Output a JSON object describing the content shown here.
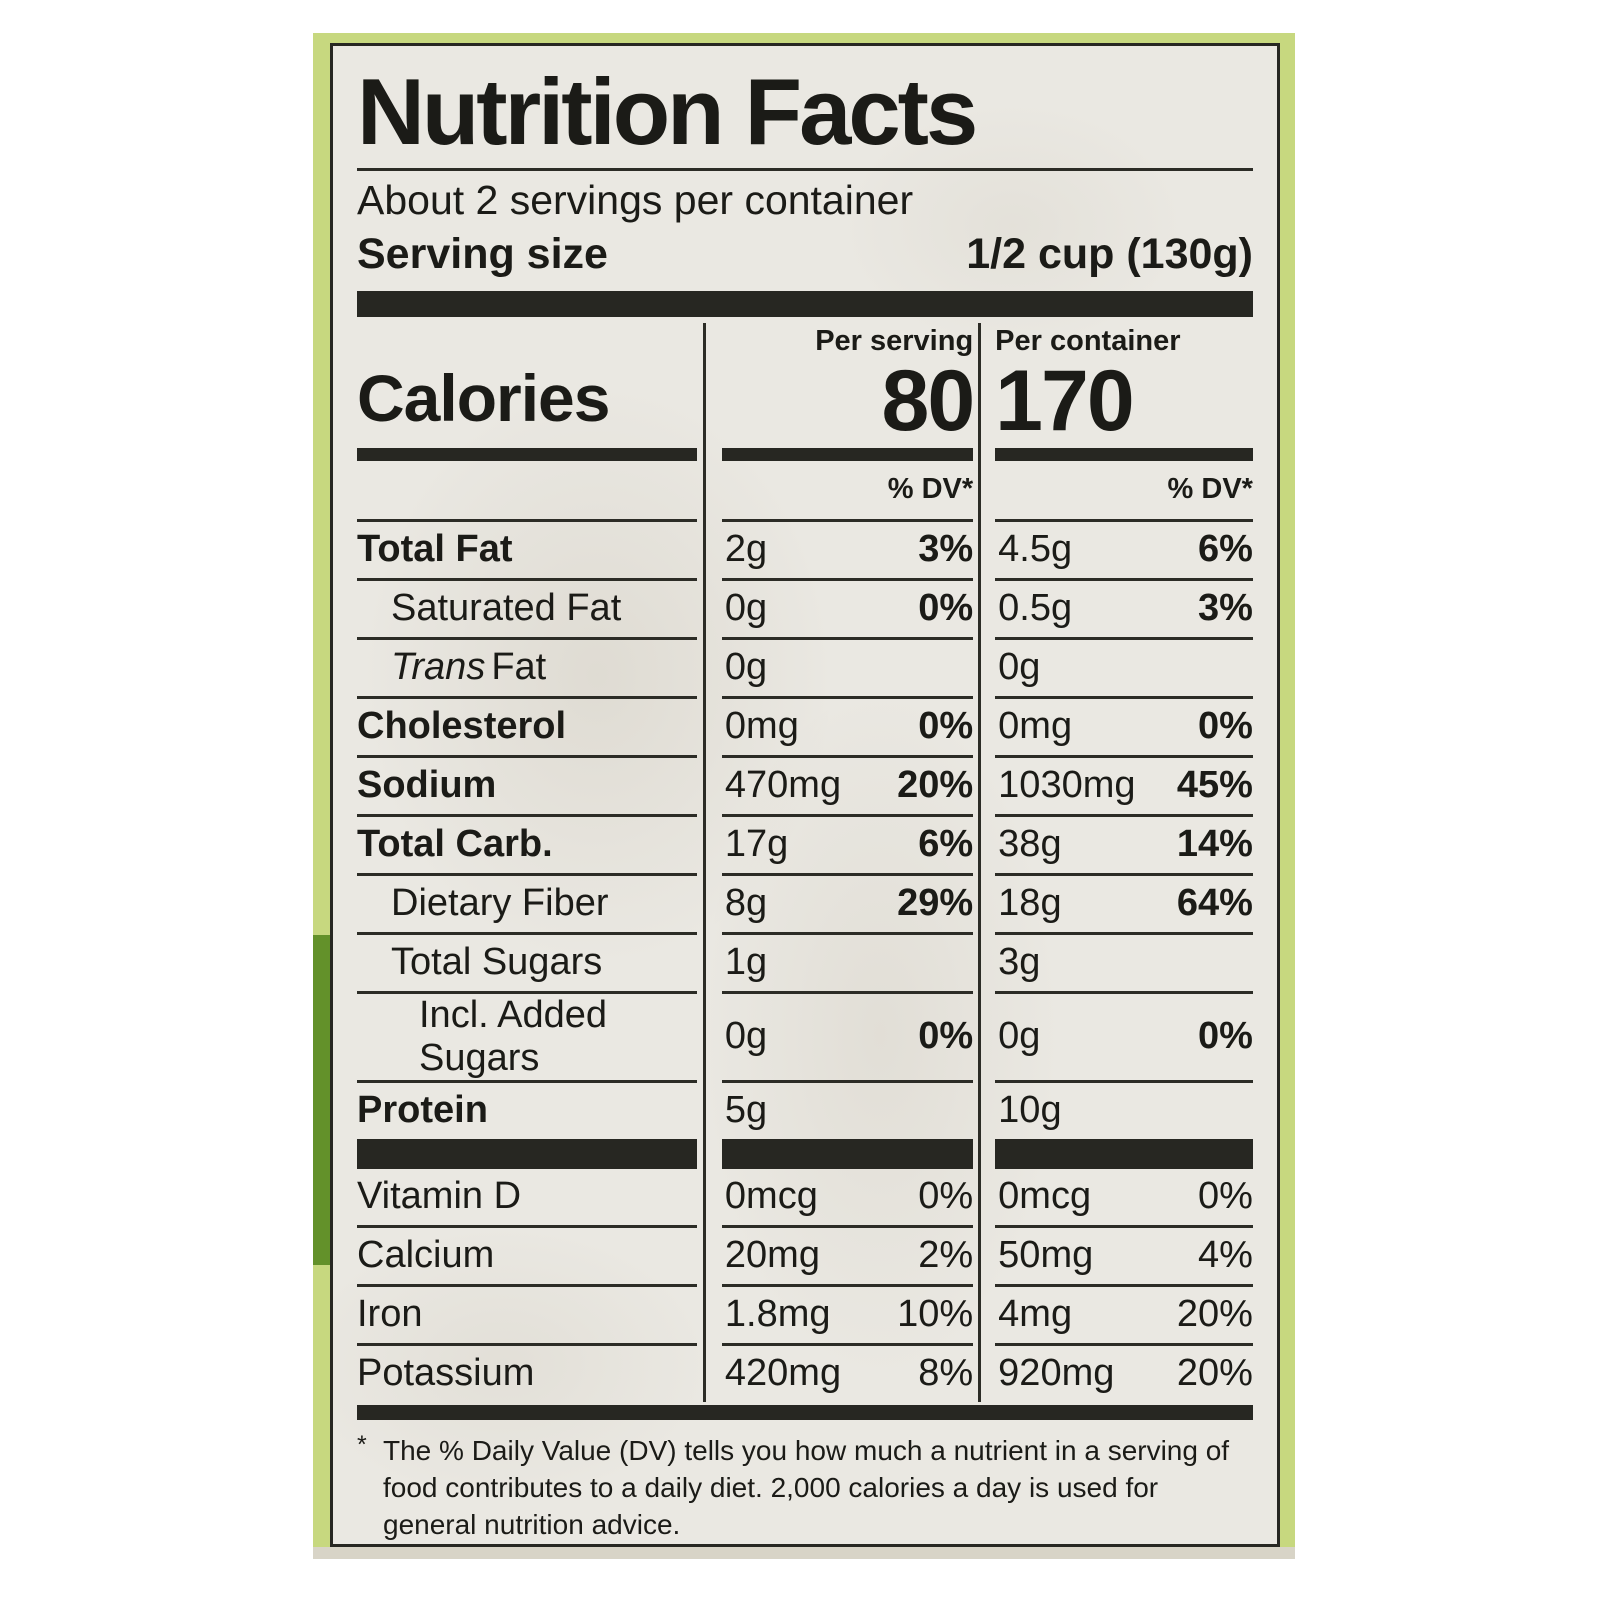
{
  "label": {
    "title": "Nutrition Facts",
    "servings_per_container": "About 2 servings per container",
    "serving_size_label": "Serving size",
    "serving_size_value": "1/2 cup (130g)",
    "calories": {
      "word": "Calories",
      "per_serving_header": "Per serving",
      "per_serving_value": "80",
      "per_container_header": "Per container",
      "per_container_value": "170"
    },
    "dv_header": "% DV*",
    "nutrients": [
      {
        "name": "Total Fat",
        "bold": true,
        "indent": 0,
        "serving_amount": "2g",
        "serving_dv": "3%",
        "container_amount": "4.5g",
        "container_dv": "6%"
      },
      {
        "name": "Saturated Fat",
        "bold": false,
        "indent": 1,
        "serving_amount": "0g",
        "serving_dv": "0%",
        "container_amount": "0.5g",
        "container_dv": "3%"
      },
      {
        "name_italic": "Trans",
        "name_rest": "Fat",
        "bold": false,
        "indent": 1,
        "serving_amount": "0g",
        "serving_dv": "",
        "container_amount": "0g",
        "container_dv": ""
      },
      {
        "name": "Cholesterol",
        "bold": true,
        "indent": 0,
        "serving_amount": "0mg",
        "serving_dv": "0%",
        "container_amount": "0mg",
        "container_dv": "0%"
      },
      {
        "name": "Sodium",
        "bold": true,
        "indent": 0,
        "serving_amount": "470mg",
        "serving_dv": "20%",
        "container_amount": "1030mg",
        "container_dv": "45%"
      },
      {
        "name": "Total Carb.",
        "bold": true,
        "indent": 0,
        "serving_amount": "17g",
        "serving_dv": "6%",
        "container_amount": "38g",
        "container_dv": "14%"
      },
      {
        "name": "Dietary Fiber",
        "bold": false,
        "indent": 1,
        "serving_amount": "8g",
        "serving_dv": "29%",
        "container_amount": "18g",
        "container_dv": "64%"
      },
      {
        "name": "Total Sugars",
        "bold": false,
        "indent": 1,
        "serving_amount": "1g",
        "serving_dv": "",
        "container_amount": "3g",
        "container_dv": ""
      },
      {
        "name": "Incl. Added Sugars",
        "bold": false,
        "indent": 2,
        "serving_amount": "0g",
        "serving_dv": "0%",
        "container_amount": "0g",
        "container_dv": "0%"
      },
      {
        "name": "Protein",
        "bold": true,
        "indent": 0,
        "serving_amount": "5g",
        "serving_dv": "",
        "container_amount": "10g",
        "container_dv": ""
      }
    ],
    "micronutrients": [
      {
        "name": "Vitamin D",
        "bold": false,
        "indent": 0,
        "dv_bold": false,
        "serving_amount": "0mcg",
        "serving_dv": "0%",
        "container_amount": "0mcg",
        "container_dv": "0%"
      },
      {
        "name": "Calcium",
        "bold": false,
        "indent": 0,
        "dv_bold": false,
        "serving_amount": "20mg",
        "serving_dv": "2%",
        "container_amount": "50mg",
        "container_dv": "4%"
      },
      {
        "name": "Iron",
        "bold": false,
        "indent": 0,
        "dv_bold": false,
        "serving_amount": "1.8mg",
        "serving_dv": "10%",
        "container_amount": "4mg",
        "container_dv": "20%"
      },
      {
        "name": "Potassium",
        "bold": false,
        "indent": 0,
        "dv_bold": false,
        "serving_amount": "420mg",
        "serving_dv": "8%",
        "container_amount": "920mg",
        "container_dv": "20%"
      }
    ],
    "footnote_marker": "*",
    "footnote_text": "The % Daily Value (DV) tells you how much a nutrient in a serving of food contributes to a daily diet. 2,000 calories a day is used for general nutrition advice."
  },
  "colors": {
    "page": "#ffffff",
    "green": "#c7d87f",
    "dark_green": "#63912a",
    "paper": "#eae8e2",
    "ink": "#272722",
    "line": "#2c2c26",
    "text": "#1b1b17",
    "edge": "#d8d4c7"
  }
}
